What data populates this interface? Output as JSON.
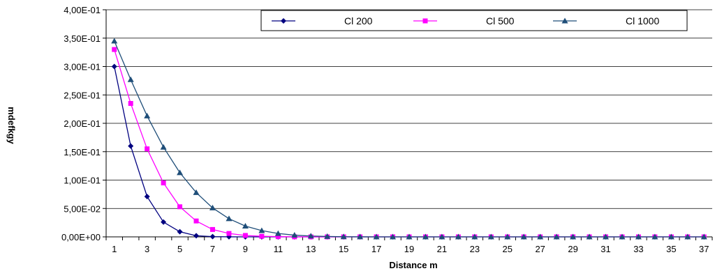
{
  "chart_data": {
    "type": "line",
    "xlabel": "Distance  m",
    "ylabel": "mdefkgy",
    "ylim": [
      0,
      0.4
    ],
    "y_ticks": [
      "0,00E+00",
      "5,00E-02",
      "1,00E-01",
      "1,50E-01",
      "2,00E-01",
      "2,50E-01",
      "3,00E-01",
      "3,50E-01",
      "4,00E-01"
    ],
    "x": [
      1,
      2,
      3,
      4,
      5,
      6,
      7,
      8,
      9,
      10,
      11,
      12,
      13,
      14,
      15,
      16,
      17,
      18,
      19,
      20,
      21,
      22,
      23,
      24,
      25,
      26,
      27,
      28,
      29,
      30,
      31,
      32,
      33,
      34,
      35,
      36,
      37
    ],
    "x_tick_labels": [
      "1",
      "3",
      "5",
      "7",
      "9",
      "11",
      "13",
      "15",
      "17",
      "19",
      "21",
      "23",
      "25",
      "27",
      "29",
      "31",
      "33",
      "35",
      "37"
    ],
    "grid": "horizontal",
    "legend_position": "top-right",
    "series": [
      {
        "name": "Cl 200",
        "color": "#000080",
        "marker": "diamond",
        "values": [
          0.3,
          0.16,
          0.071,
          0.026,
          0.009,
          0.002,
          0.0005,
          0.0001,
          0,
          0,
          0,
          0,
          0,
          0,
          0,
          0,
          0,
          0,
          0,
          0,
          0,
          0,
          0,
          0,
          0,
          0,
          0,
          0,
          0,
          0,
          0,
          0,
          0,
          0,
          0,
          0,
          0
        ]
      },
      {
        "name": "Cl 500",
        "color": "#FF00FF",
        "marker": "square",
        "values": [
          0.33,
          0.235,
          0.155,
          0.095,
          0.053,
          0.028,
          0.013,
          0.006,
          0.0025,
          0.001,
          0.0004,
          0.0001,
          0,
          0,
          0,
          0,
          0,
          0,
          0,
          0,
          0,
          0,
          0,
          0,
          0,
          0,
          0,
          0,
          0,
          0,
          0,
          0,
          0,
          0,
          0,
          0,
          0
        ]
      },
      {
        "name": "Cl 1000",
        "color": "#1F4E79",
        "marker": "triangle",
        "values": [
          0.345,
          0.277,
          0.213,
          0.158,
          0.113,
          0.078,
          0.051,
          0.032,
          0.019,
          0.011,
          0.006,
          0.003,
          0.0015,
          0.0007,
          0.0003,
          0.0001,
          0,
          0,
          0,
          0,
          0,
          0,
          0,
          0,
          0,
          0,
          0,
          0,
          0,
          0,
          0,
          0,
          0,
          0,
          0,
          0,
          0
        ]
      }
    ]
  }
}
